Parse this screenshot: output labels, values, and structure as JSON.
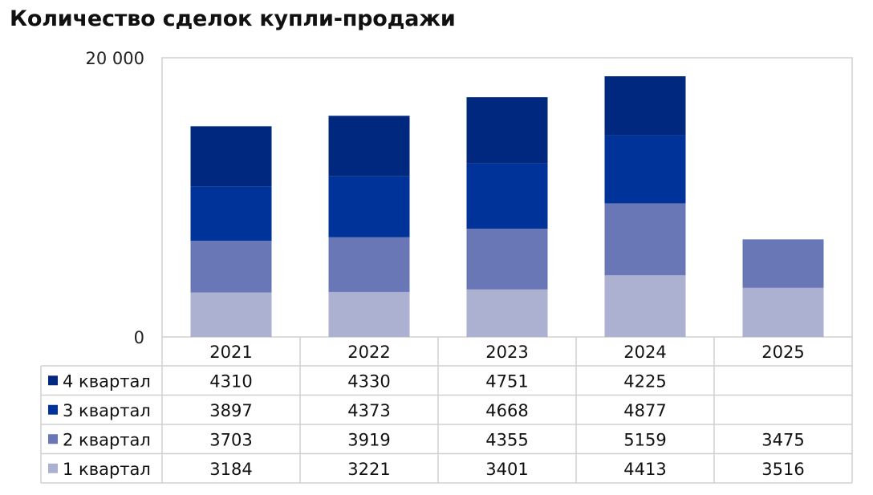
{
  "chart_data": {
    "type": "bar",
    "stacked": true,
    "title": "Количество сделок купли-продажи",
    "xlabel": "",
    "ylabel": "",
    "categories": [
      "2021",
      "2022",
      "2023",
      "2024",
      "2025"
    ],
    "ylim": [
      0,
      20000
    ],
    "y_tick_labels": [
      "0",
      "20 000"
    ],
    "y_tick_values": [
      0,
      20000
    ],
    "grid": false,
    "legend": "data-table-left",
    "series": [
      {
        "name": "1 квартал",
        "color": "#adb1d1",
        "values": [
          3184,
          3221,
          3401,
          4413,
          3516
        ]
      },
      {
        "name": "2 квартал",
        "color": "#6a77b7",
        "values": [
          3703,
          3919,
          4355,
          5159,
          3475
        ]
      },
      {
        "name": "3 квартал",
        "color": "#003399",
        "values": [
          3897,
          4373,
          4668,
          4877,
          null
        ]
      },
      {
        "name": "4 квартал",
        "color": "#00287f",
        "values": [
          4310,
          4330,
          4751,
          4225,
          null
        ]
      }
    ]
  }
}
